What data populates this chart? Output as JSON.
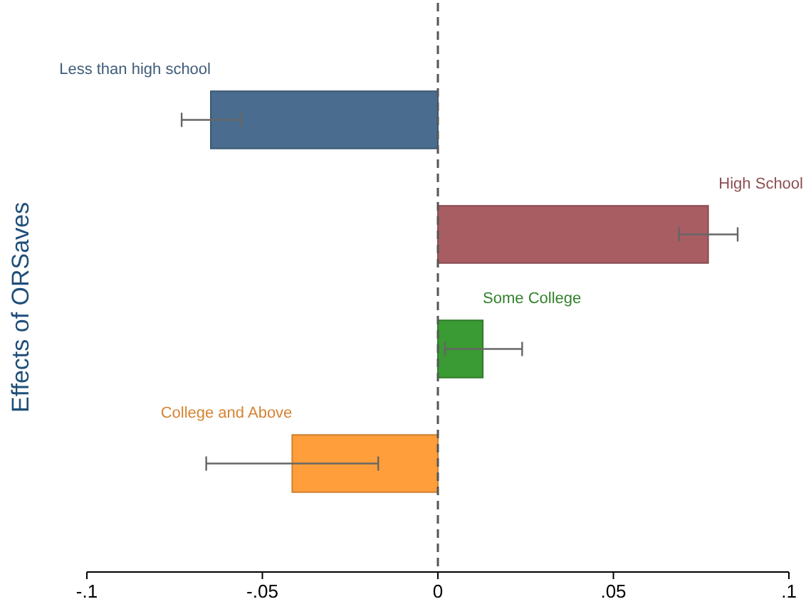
{
  "chart_data": {
    "type": "bar",
    "orientation": "horizontal",
    "ylabel": "Effects of ORSaves",
    "categories": [
      null,
      null,
      null,
      null
    ],
    "series": [
      {
        "name": "Less than high school",
        "color": "#4a6d8f",
        "values": [
          -0.0647,
          null,
          null,
          null
        ],
        "errors": [
          [
            -0.073,
            -0.056
          ],
          null,
          null,
          null
        ]
      },
      {
        "name": "High School",
        "color": "#a85d63",
        "values": [
          null,
          0.077,
          null,
          null
        ],
        "errors": [
          null,
          [
            0.0687,
            0.0854
          ],
          null,
          null
        ]
      },
      {
        "name": "Some College",
        "color": "#3a9a33",
        "values": [
          null,
          null,
          0.0128,
          null
        ],
        "errors": [
          null,
          null,
          [
            0.002,
            0.024
          ],
          null
        ]
      },
      {
        "name": "College and Above",
        "color": "#ff9e3a",
        "values": [
          null,
          null,
          null,
          -0.0415
        ],
        "errors": [
          null,
          null,
          null,
          [
            -0.066,
            -0.017
          ]
        ]
      }
    ],
    "xlim": [
      -0.1,
      0.1
    ],
    "xticks": [
      {
        "value": -0.1,
        "label": "-.1"
      },
      {
        "value": -0.05,
        "label": "-.05"
      },
      0,
      {
        "value": 0.05,
        "label": ".05"
      },
      {
        "value": 0.1,
        "label": ".1"
      }
    ],
    "ref_lines": [
      {
        "axis": "x",
        "value": 0,
        "line_style": "dashed",
        "color": "#555555"
      }
    ],
    "grid": false
  }
}
